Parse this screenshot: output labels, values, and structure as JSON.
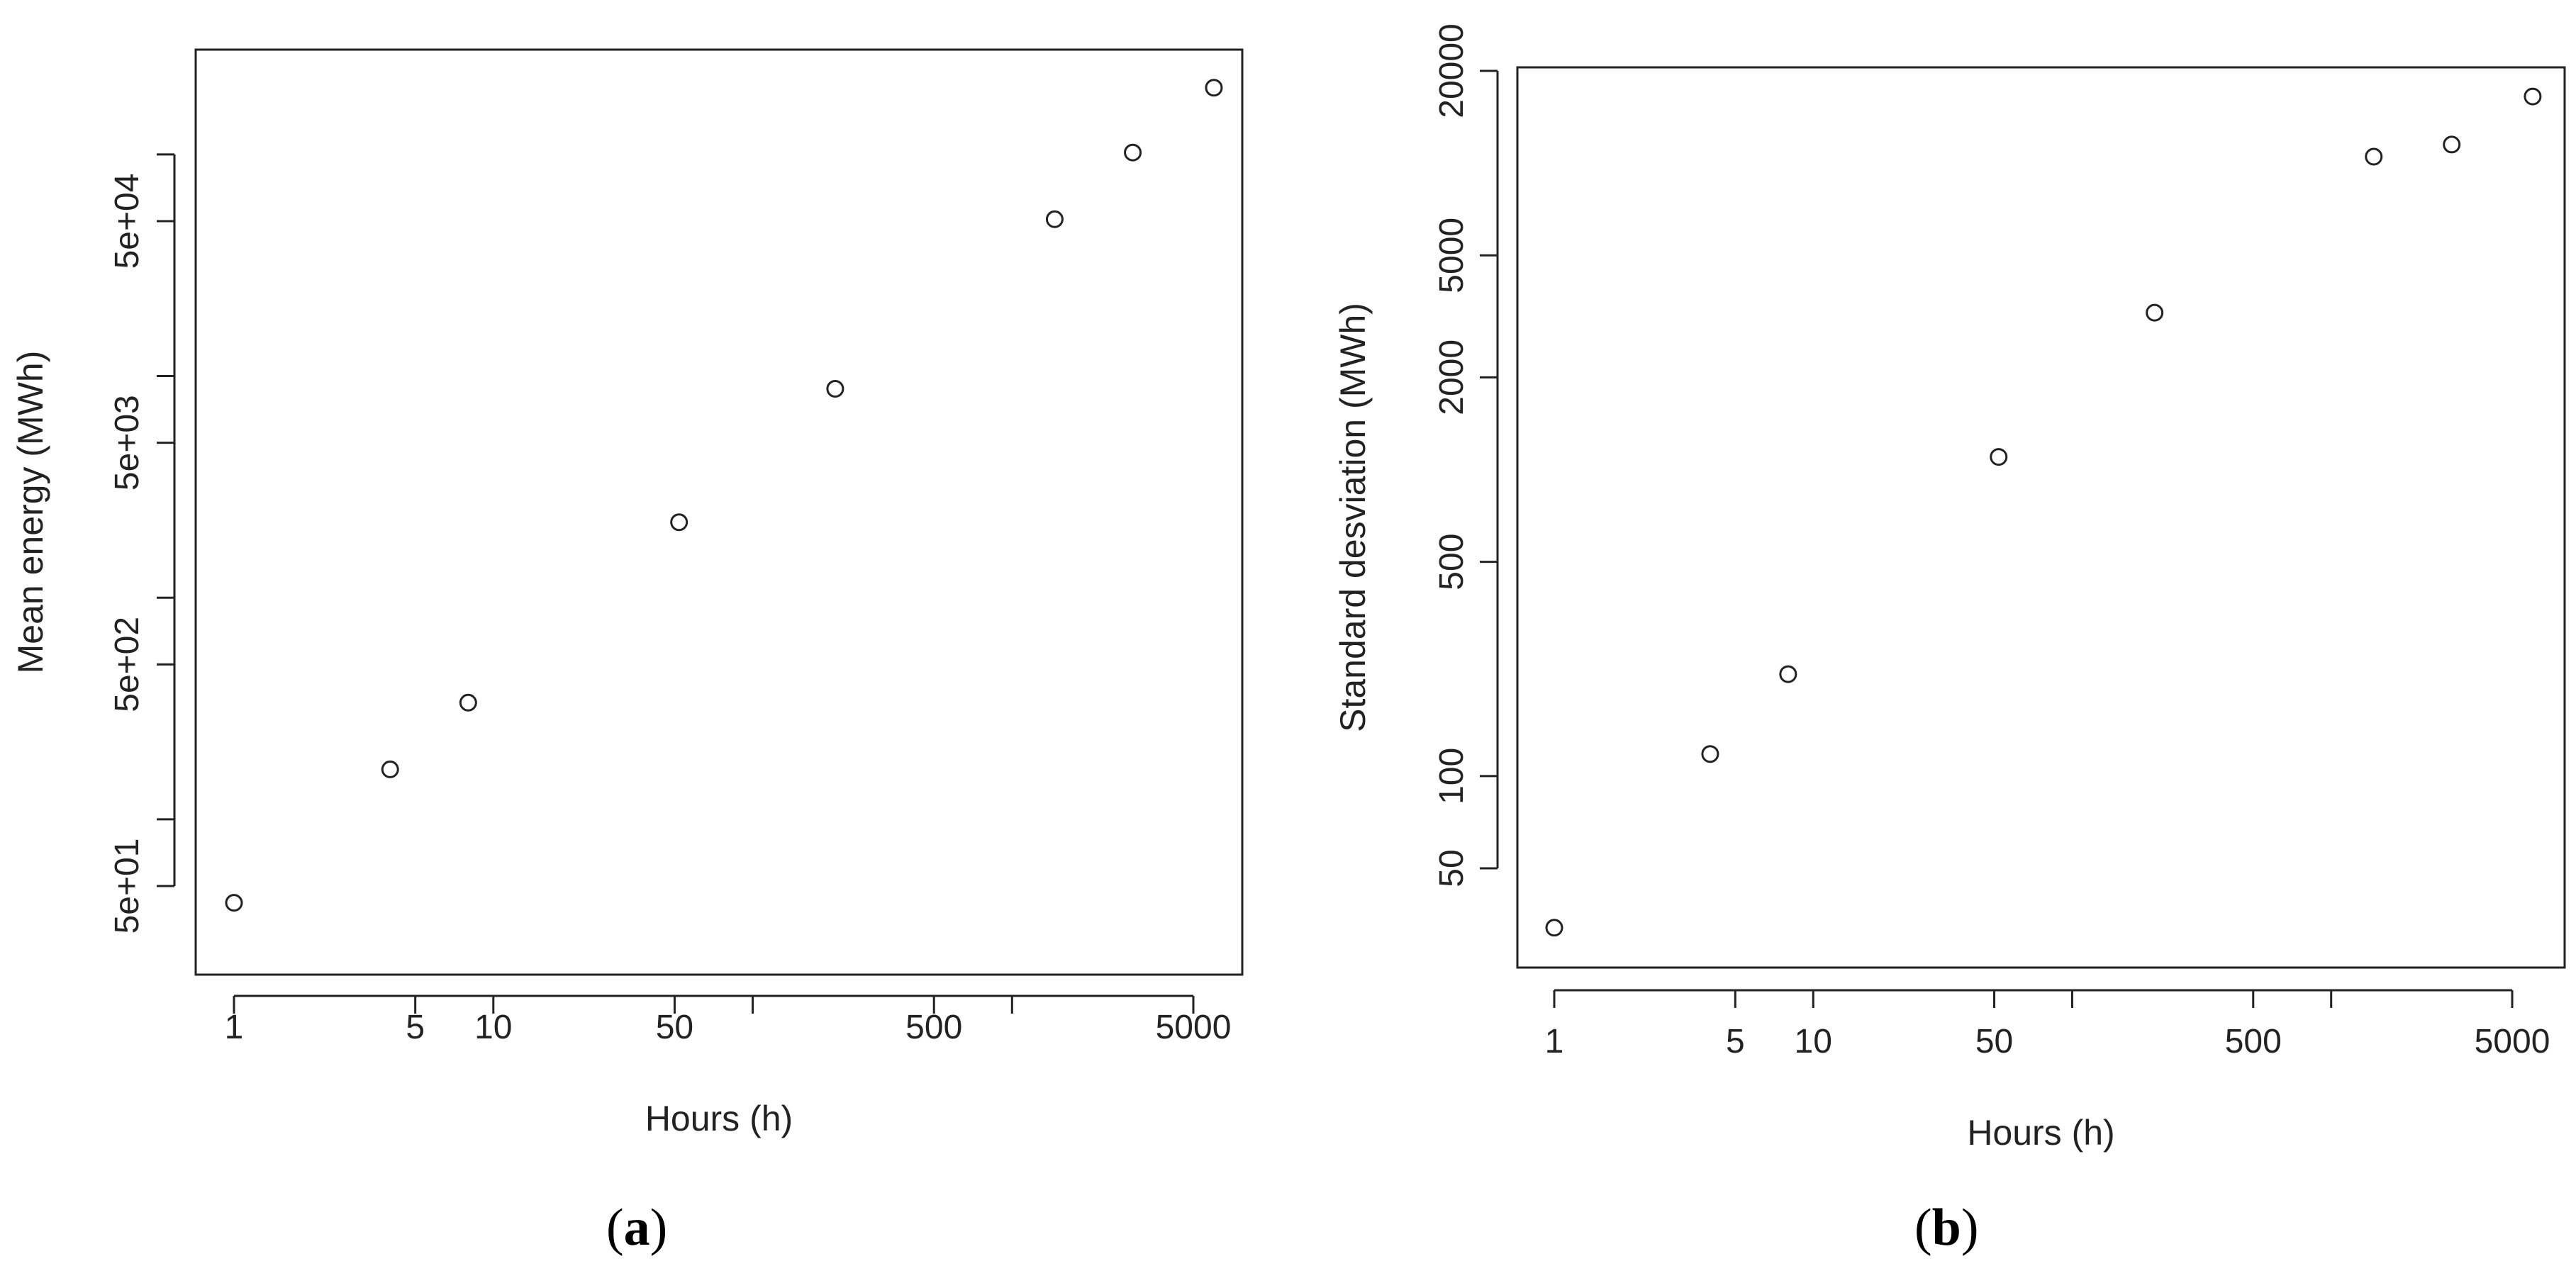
{
  "chart_data": [
    {
      "panel": "a",
      "type": "scatter",
      "xlabel": "Hours (h)",
      "ylabel": "Mean energy (MWh)",
      "x_scale": "log",
      "y_scale": "log",
      "x_ticks": [
        1,
        5,
        10,
        50,
        100,
        500,
        1000,
        5000
      ],
      "x_tick_labels": [
        "1",
        "5",
        "10",
        "50",
        "",
        "500",
        "",
        "5000"
      ],
      "y_ticks": [
        50,
        100,
        500,
        1000,
        5000,
        10000,
        50000,
        100000
      ],
      "y_tick_labels": [
        "5e+01",
        "",
        "5e+02",
        "",
        "5e+03",
        "",
        "5e+04",
        ""
      ],
      "x": [
        1,
        4,
        8,
        52,
        208,
        1460,
        2920,
        6000
      ],
      "y": [
        42,
        168,
        336,
        2190,
        8760,
        51000,
        102000,
        200000
      ]
    },
    {
      "panel": "b",
      "type": "scatter",
      "xlabel": "Hours (h)",
      "ylabel": "Standard desviation (MWh)",
      "x_scale": "log",
      "y_scale": "log",
      "x_ticks": [
        1,
        5,
        10,
        50,
        100,
        500,
        1000,
        5000
      ],
      "x_tick_labels": [
        "1",
        "5",
        "10",
        "50",
        "",
        "500",
        "",
        "5000"
      ],
      "y_ticks": [
        50,
        100,
        500,
        2000,
        5000,
        20000
      ],
      "y_tick_labels": [
        "50",
        "100",
        "500",
        "2000",
        "5000",
        "20000"
      ],
      "x": [
        1,
        4,
        8,
        52,
        208,
        1460,
        2920,
        6000
      ],
      "y": [
        32,
        118,
        215,
        1100,
        3250,
        10500,
        11500,
        16500
      ]
    }
  ],
  "panel_labels": [
    "a",
    "b"
  ]
}
